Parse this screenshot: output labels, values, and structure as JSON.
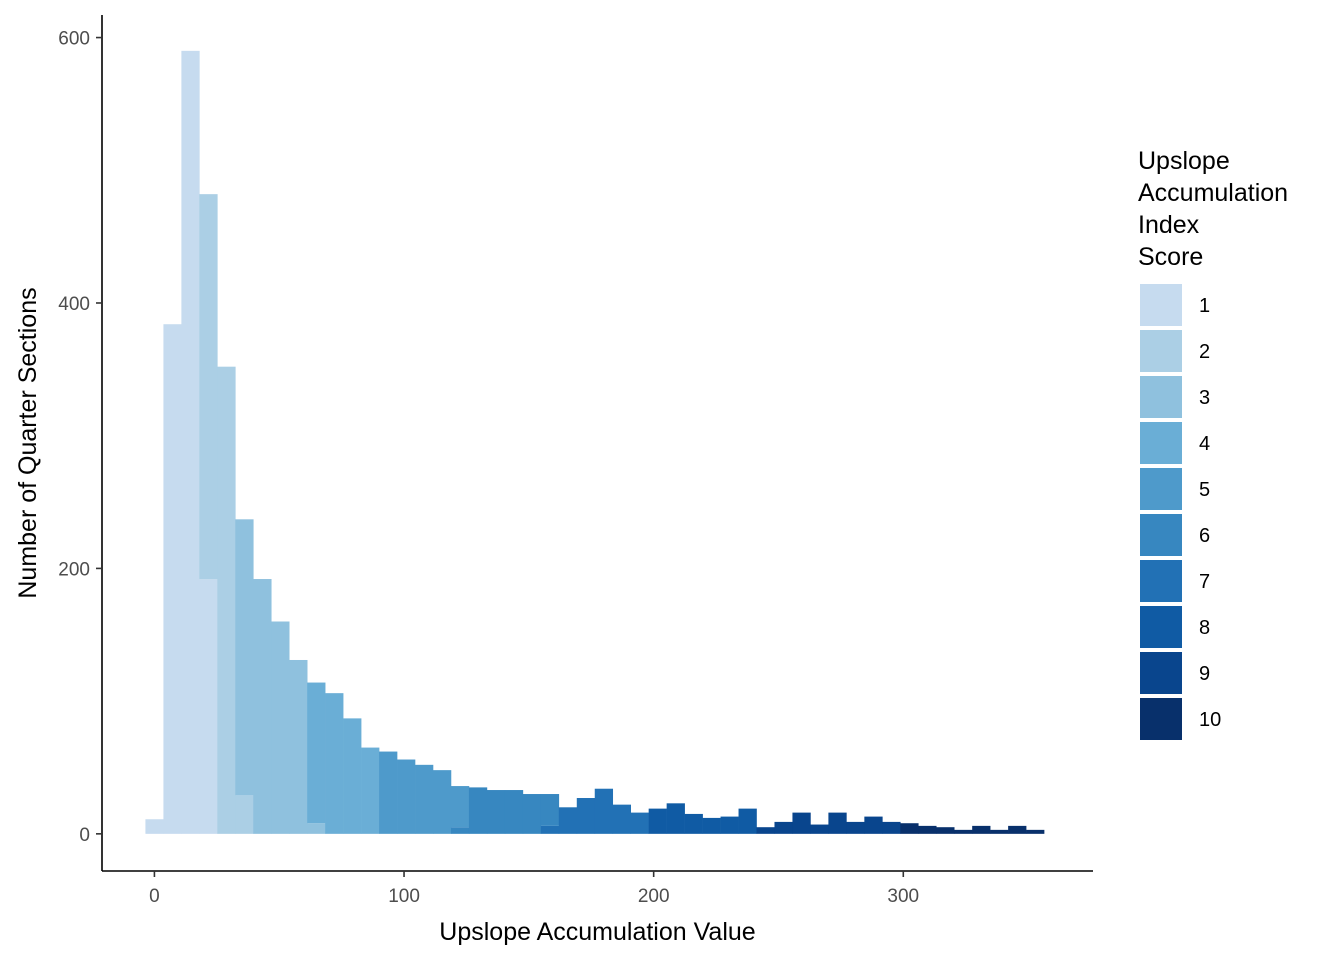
{
  "chart_data": {
    "type": "bar",
    "subtype": "stacked-histogram",
    "title": "",
    "xlabel": "Upslope Accumulation Value",
    "ylabel": "Number of Quarter Sections",
    "xlim": [
      -21,
      376
    ],
    "ylim": [
      -28,
      617
    ],
    "x_ticks": [
      0,
      100,
      200,
      300
    ],
    "y_ticks": [
      0,
      200,
      400,
      600
    ],
    "grid": false,
    "legend": {
      "title": [
        "Upslope",
        "Accumulation",
        "Index",
        "Score"
      ],
      "position": "right",
      "items": [
        {
          "label": "1",
          "color": "#c6dbef"
        },
        {
          "label": "2",
          "color": "#abcfe5"
        },
        {
          "label": "3",
          "color": "#8fc1de"
        },
        {
          "label": "4",
          "color": "#6aaed6"
        },
        {
          "label": "5",
          "color": "#4e9acb"
        },
        {
          "label": "6",
          "color": "#3787c0"
        },
        {
          "label": "7",
          "color": "#2271b5"
        },
        {
          "label": "8",
          "color": "#105ba4"
        },
        {
          "label": "9",
          "color": "#09458d"
        },
        {
          "label": "10",
          "color": "#08306b"
        }
      ]
    },
    "bin_width": 7.2,
    "bins": [
      {
        "x0": -3.6,
        "segments": [
          {
            "score": "1",
            "count": 11
          }
        ]
      },
      {
        "x0": 3.6,
        "segments": [
          {
            "score": "1",
            "count": 384
          }
        ]
      },
      {
        "x0": 10.8,
        "segments": [
          {
            "score": "1",
            "count": 590
          }
        ]
      },
      {
        "x0": 18.0,
        "segments": [
          {
            "score": "1",
            "count": 192
          },
          {
            "score": "2",
            "count": 290
          }
        ]
      },
      {
        "x0": 25.2,
        "segments": [
          {
            "score": "2",
            "count": 352
          }
        ]
      },
      {
        "x0": 32.4,
        "segments": [
          {
            "score": "2",
            "count": 29
          },
          {
            "score": "3",
            "count": 208
          }
        ]
      },
      {
        "x0": 39.6,
        "segments": [
          {
            "score": "3",
            "count": 192
          }
        ]
      },
      {
        "x0": 46.8,
        "segments": [
          {
            "score": "3",
            "count": 160
          }
        ]
      },
      {
        "x0": 54.0,
        "segments": [
          {
            "score": "3",
            "count": 131
          }
        ]
      },
      {
        "x0": 61.2,
        "segments": [
          {
            "score": "3",
            "count": 8
          },
          {
            "score": "4",
            "count": 106
          }
        ]
      },
      {
        "x0": 68.4,
        "segments": [
          {
            "score": "4",
            "count": 106
          }
        ]
      },
      {
        "x0": 75.6,
        "segments": [
          {
            "score": "4",
            "count": 87
          }
        ]
      },
      {
        "x0": 82.8,
        "segments": [
          {
            "score": "4",
            "count": 65
          }
        ]
      },
      {
        "x0": 90.0,
        "segments": [
          {
            "score": "5",
            "count": 62
          }
        ]
      },
      {
        "x0": 97.2,
        "segments": [
          {
            "score": "5",
            "count": 56
          }
        ]
      },
      {
        "x0": 104.4,
        "segments": [
          {
            "score": "5",
            "count": 52
          }
        ]
      },
      {
        "x0": 111.6,
        "segments": [
          {
            "score": "5",
            "count": 48
          }
        ]
      },
      {
        "x0": 118.8,
        "segments": [
          {
            "score": "6",
            "count": 5
          },
          {
            "score": "5",
            "count": 31
          }
        ]
      },
      {
        "x0": 126.0,
        "segments": [
          {
            "score": "6",
            "count": 35
          }
        ]
      },
      {
        "x0": 133.2,
        "segments": [
          {
            "score": "6",
            "count": 33
          }
        ]
      },
      {
        "x0": 140.4,
        "segments": [
          {
            "score": "6",
            "count": 33
          }
        ]
      },
      {
        "x0": 147.6,
        "segments": [
          {
            "score": "6",
            "count": 30
          }
        ]
      },
      {
        "x0": 154.8,
        "segments": [
          {
            "score": "7",
            "count": 6
          },
          {
            "score": "6",
            "count": 24
          }
        ]
      },
      {
        "x0": 162.0,
        "segments": [
          {
            "score": "7",
            "count": 20
          }
        ]
      },
      {
        "x0": 169.2,
        "segments": [
          {
            "score": "7",
            "count": 27
          }
        ]
      },
      {
        "x0": 176.4,
        "segments": [
          {
            "score": "7",
            "count": 34
          }
        ]
      },
      {
        "x0": 183.6,
        "segments": [
          {
            "score": "7",
            "count": 22
          }
        ]
      },
      {
        "x0": 190.8,
        "segments": [
          {
            "score": "7",
            "count": 16
          }
        ]
      },
      {
        "x0": 198.0,
        "segments": [
          {
            "score": "8",
            "count": 19
          }
        ]
      },
      {
        "x0": 205.2,
        "segments": [
          {
            "score": "8",
            "count": 23
          }
        ]
      },
      {
        "x0": 212.4,
        "segments": [
          {
            "score": "8",
            "count": 15
          }
        ]
      },
      {
        "x0": 219.6,
        "segments": [
          {
            "score": "8",
            "count": 12
          }
        ]
      },
      {
        "x0": 226.8,
        "segments": [
          {
            "score": "8",
            "count": 13
          }
        ]
      },
      {
        "x0": 234.0,
        "segments": [
          {
            "score": "8",
            "count": 19
          }
        ]
      },
      {
        "x0": 241.2,
        "segments": [
          {
            "score": "9",
            "count": 5
          }
        ]
      },
      {
        "x0": 248.4,
        "segments": [
          {
            "score": "9",
            "count": 9
          }
        ]
      },
      {
        "x0": 255.6,
        "segments": [
          {
            "score": "9",
            "count": 16
          }
        ]
      },
      {
        "x0": 262.8,
        "segments": [
          {
            "score": "9",
            "count": 7
          }
        ]
      },
      {
        "x0": 270.0,
        "segments": [
          {
            "score": "9",
            "count": 16
          }
        ]
      },
      {
        "x0": 277.2,
        "segments": [
          {
            "score": "9",
            "count": 9
          }
        ]
      },
      {
        "x0": 284.4,
        "segments": [
          {
            "score": "9",
            "count": 13
          }
        ]
      },
      {
        "x0": 291.6,
        "segments": [
          {
            "score": "9",
            "count": 9
          }
        ]
      },
      {
        "x0": 298.8,
        "segments": [
          {
            "score": "10",
            "count": 8
          }
        ]
      },
      {
        "x0": 306.0,
        "segments": [
          {
            "score": "10",
            "count": 6
          }
        ]
      },
      {
        "x0": 313.2,
        "segments": [
          {
            "score": "10",
            "count": 5
          }
        ]
      },
      {
        "x0": 320.4,
        "segments": [
          {
            "score": "10",
            "count": 3
          }
        ]
      },
      {
        "x0": 327.6,
        "segments": [
          {
            "score": "10",
            "count": 6
          }
        ]
      },
      {
        "x0": 334.8,
        "segments": [
          {
            "score": "10",
            "count": 3
          }
        ]
      },
      {
        "x0": 342.0,
        "segments": [
          {
            "score": "10",
            "count": 6
          }
        ]
      },
      {
        "x0": 349.2,
        "segments": [
          {
            "score": "10",
            "count": 3
          }
        ]
      }
    ]
  }
}
